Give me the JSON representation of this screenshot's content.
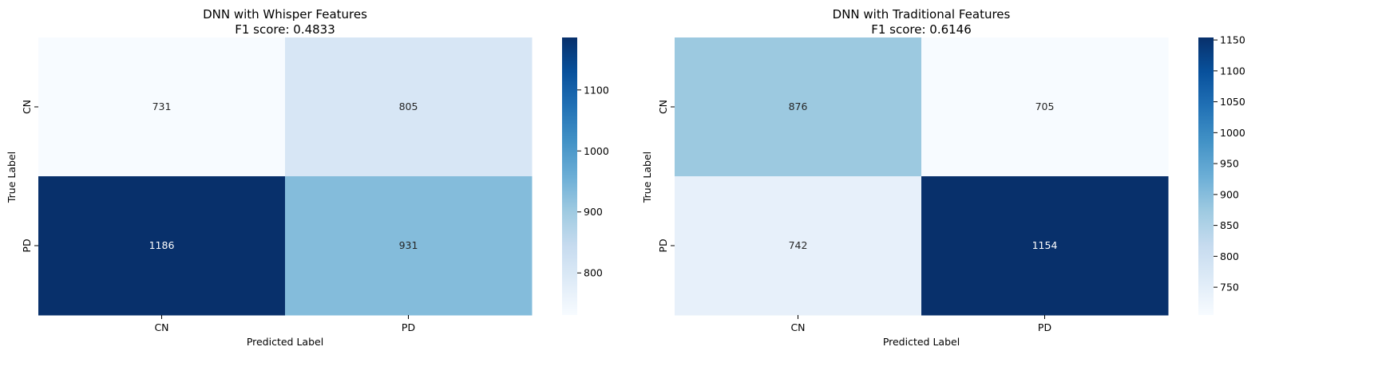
{
  "chart_data": [
    {
      "type": "heatmap",
      "title": "DNN with Whisper Features",
      "subtitle": "F1 score: 0.4833",
      "xlabel": "Predicted Label",
      "ylabel": "True Label",
      "x_categories": [
        "CN",
        "PD"
      ],
      "y_categories": [
        "CN",
        "PD"
      ],
      "values": [
        [
          731,
          805
        ],
        [
          1186,
          931
        ]
      ],
      "colormap": "Blues",
      "color_range": [
        731,
        1186
      ],
      "colorbar_ticks": [
        800,
        900,
        1000,
        1100
      ],
      "colorbar_tick_labels": [
        "800",
        "900",
        "1000",
        "1100"
      ]
    },
    {
      "type": "heatmap",
      "title": "DNN with Traditional Features",
      "subtitle": "F1 score: 0.6146",
      "xlabel": "Predicted Label",
      "ylabel": "True Label",
      "x_categories": [
        "CN",
        "PD"
      ],
      "y_categories": [
        "CN",
        "PD"
      ],
      "values": [
        [
          876,
          705
        ],
        [
          742,
          1154
        ]
      ],
      "colormap": "Blues",
      "color_range": [
        705,
        1154
      ],
      "colorbar_ticks": [
        750,
        800,
        850,
        900,
        950,
        1000,
        1050,
        1100,
        1150
      ],
      "colorbar_tick_labels": [
        "750",
        "800",
        "850",
        "900",
        "950",
        "1000",
        "1050",
        "1100",
        "1150"
      ]
    }
  ]
}
